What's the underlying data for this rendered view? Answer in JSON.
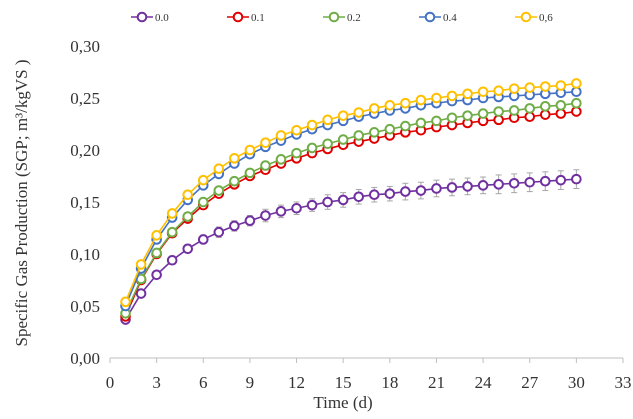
{
  "chart_data": {
    "type": "line",
    "title": "",
    "xlabel": "Time (d)",
    "ylabel": "Specific Gas Production (SGP; m³/kgVS )",
    "xlim": [
      0,
      33
    ],
    "ylim": [
      0,
      0.3
    ],
    "xticks": [
      0,
      3,
      6,
      9,
      12,
      15,
      18,
      21,
      24,
      27,
      30,
      33
    ],
    "xtick_labels": [
      "0",
      "3",
      "6",
      "9",
      "12",
      "15",
      "18",
      "21",
      "24",
      "27",
      "30",
      "33"
    ],
    "yticks": [
      0,
      0.05,
      0.1,
      0.15,
      0.2,
      0.25,
      0.3
    ],
    "ytick_labels": [
      "0,00",
      "0,05",
      "0,10",
      "0,15",
      "0,20",
      "0,25",
      "0,30"
    ],
    "grid": false,
    "legend_position": "top",
    "markers": "open-circle",
    "error_bars": true,
    "x": [
      1,
      2,
      3,
      4,
      5,
      6,
      7,
      8,
      9,
      10,
      11,
      12,
      13,
      14,
      15,
      16,
      17,
      18,
      19,
      20,
      21,
      22,
      23,
      24,
      25,
      26,
      27,
      28,
      29,
      30
    ],
    "series": [
      {
        "name": "0.0",
        "color": "#7030A0",
        "values": [
          0.037,
          0.062,
          0.08,
          0.094,
          0.105,
          0.114,
          0.121,
          0.127,
          0.132,
          0.137,
          0.141,
          0.144,
          0.147,
          0.15,
          0.152,
          0.155,
          0.157,
          0.158,
          0.16,
          0.161,
          0.163,
          0.164,
          0.165,
          0.166,
          0.167,
          0.168,
          0.169,
          0.17,
          0.171,
          0.172
        ],
        "error": [
          0.002,
          0.003,
          0.003,
          0.004,
          0.004,
          0.004,
          0.005,
          0.005,
          0.005,
          0.006,
          0.006,
          0.006,
          0.006,
          0.007,
          0.007,
          0.007,
          0.007,
          0.007,
          0.008,
          0.008,
          0.008,
          0.008,
          0.008,
          0.008,
          0.009,
          0.009,
          0.009,
          0.009,
          0.009,
          0.009
        ]
      },
      {
        "name": "0.1",
        "color": "#E00000",
        "values": [
          0.04,
          0.075,
          0.1,
          0.12,
          0.134,
          0.147,
          0.158,
          0.167,
          0.175,
          0.181,
          0.187,
          0.192,
          0.197,
          0.201,
          0.205,
          0.208,
          0.211,
          0.214,
          0.217,
          0.219,
          0.222,
          0.224,
          0.226,
          0.228,
          0.229,
          0.231,
          0.232,
          0.234,
          0.235,
          0.237
        ]
      },
      {
        "name": "0.2",
        "color": "#70AD47",
        "values": [
          0.043,
          0.076,
          0.101,
          0.121,
          0.136,
          0.15,
          0.161,
          0.17,
          0.178,
          0.185,
          0.191,
          0.197,
          0.202,
          0.206,
          0.21,
          0.214,
          0.217,
          0.22,
          0.223,
          0.226,
          0.228,
          0.231,
          0.233,
          0.235,
          0.237,
          0.238,
          0.24,
          0.242,
          0.243,
          0.245
        ]
      },
      {
        "name": "0.4",
        "color": "#4472C4",
        "values": [
          0.05,
          0.086,
          0.114,
          0.135,
          0.152,
          0.166,
          0.177,
          0.187,
          0.196,
          0.203,
          0.209,
          0.215,
          0.22,
          0.224,
          0.228,
          0.232,
          0.235,
          0.238,
          0.24,
          0.243,
          0.245,
          0.247,
          0.248,
          0.25,
          0.251,
          0.252,
          0.253,
          0.254,
          0.255,
          0.256
        ]
      },
      {
        "name": "0,6",
        "color": "#FFC000",
        "values": [
          0.054,
          0.09,
          0.118,
          0.139,
          0.157,
          0.171,
          0.182,
          0.192,
          0.2,
          0.207,
          0.214,
          0.219,
          0.224,
          0.229,
          0.233,
          0.236,
          0.24,
          0.243,
          0.245,
          0.248,
          0.25,
          0.252,
          0.254,
          0.256,
          0.257,
          0.259,
          0.26,
          0.261,
          0.262,
          0.264
        ]
      }
    ]
  }
}
